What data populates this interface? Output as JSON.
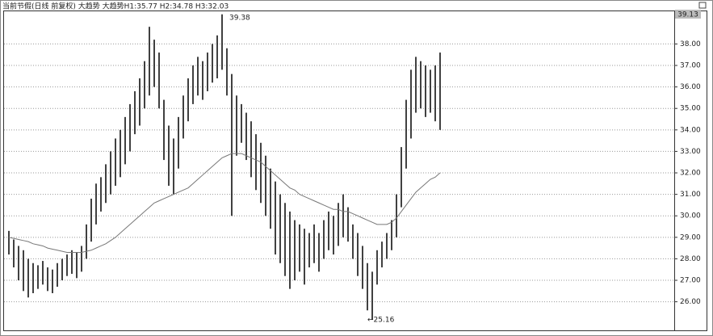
{
  "chart_data": {
    "type": "hilo",
    "title": "当前节假(日线 前复权) 大趋势 大趋势H1:35.77 H2:34.78 H3:32.03",
    "current_label": "39.13",
    "annotations": [
      "39.38",
      "←25.16"
    ],
    "highs": [
      29.3,
      28.9,
      28.6,
      28.4,
      28.0,
      27.8,
      27.7,
      27.9,
      27.6,
      27.5,
      27.8,
      28.0,
      28.2,
      28.4,
      28.3,
      28.6,
      29.6,
      30.8,
      31.5,
      31.8,
      32.4,
      33.0,
      33.6,
      34.0,
      34.6,
      35.2,
      35.8,
      36.4,
      37.2,
      38.8,
      38.2,
      37.6,
      35.4,
      34.2,
      33.6,
      34.6,
      35.6,
      36.4,
      37.0,
      37.4,
      37.2,
      37.6,
      38.0,
      38.4,
      39.38,
      37.8,
      36.6,
      35.6,
      35.2,
      34.8,
      34.4,
      33.8,
      33.4,
      32.8,
      32.2,
      31.6,
      31.0,
      30.6,
      30.2,
      29.8,
      29.6,
      29.4,
      29.2,
      29.6,
      29.2,
      29.8,
      30.2,
      30.0,
      30.6,
      31.0,
      30.4,
      29.6,
      29.2,
      28.6,
      27.8,
      27.4,
      28.4,
      28.8,
      29.2,
      29.8,
      31.0,
      33.2,
      35.4,
      36.8,
      37.4,
      37.2,
      37.0,
      36.8,
      37.0,
      37.6
    ],
    "lows": [
      28.2,
      27.6,
      27.0,
      26.5,
      26.2,
      26.4,
      26.6,
      26.8,
      26.5,
      26.4,
      26.7,
      27.0,
      27.2,
      27.3,
      27.1,
      27.4,
      28.0,
      28.8,
      29.6,
      30.2,
      30.6,
      31.0,
      31.4,
      31.8,
      32.4,
      33.0,
      33.8,
      34.2,
      35.0,
      35.6,
      36.0,
      35.0,
      32.6,
      31.4,
      31.0,
      32.2,
      33.6,
      34.4,
      35.2,
      35.6,
      35.4,
      35.8,
      36.2,
      36.4,
      36.8,
      35.6,
      30.0,
      32.8,
      33.4,
      32.6,
      31.8,
      31.2,
      30.6,
      30.0,
      29.4,
      28.2,
      27.8,
      27.2,
      26.6,
      27.0,
      27.4,
      26.8,
      27.6,
      27.8,
      27.4,
      28.0,
      28.4,
      28.2,
      28.6,
      29.0,
      28.8,
      28.0,
      27.2,
      26.6,
      25.6,
      25.16,
      26.8,
      27.6,
      28.0,
      28.4,
      29.0,
      30.4,
      32.2,
      33.6,
      34.8,
      35.0,
      34.6,
      34.8,
      34.4,
      34.0
    ],
    "ma": [
      29.0,
      28.95,
      28.9,
      28.85,
      28.8,
      28.7,
      28.65,
      28.6,
      28.5,
      28.45,
      28.4,
      28.35,
      28.3,
      28.3,
      28.3,
      28.3,
      28.35,
      28.4,
      28.5,
      28.6,
      28.7,
      28.85,
      29.0,
      29.2,
      29.4,
      29.6,
      29.8,
      30.0,
      30.2,
      30.4,
      30.6,
      30.7,
      30.8,
      30.9,
      31.0,
      31.1,
      31.2,
      31.3,
      31.5,
      31.7,
      31.9,
      32.1,
      32.3,
      32.5,
      32.7,
      32.8,
      32.9,
      32.9,
      32.9,
      32.8,
      32.7,
      32.6,
      32.5,
      32.3,
      32.1,
      31.9,
      31.7,
      31.5,
      31.3,
      31.2,
      31.0,
      30.9,
      30.8,
      30.7,
      30.6,
      30.5,
      30.4,
      30.3,
      30.3,
      30.2,
      30.2,
      30.1,
      30.0,
      29.9,
      29.8,
      29.7,
      29.6,
      29.6,
      29.6,
      29.7,
      29.9,
      30.2,
      30.5,
      30.8,
      31.1,
      31.3,
      31.5,
      31.7,
      31.8,
      32.0
    ],
    "color": "#111111",
    "ma_color": "#777777",
    "ylim": [
      24.67,
      39.52
    ],
    "yticks": [
      {
        "value": 26,
        "label": "26.00"
      },
      {
        "value": 27,
        "label": "27.00"
      },
      {
        "value": 28,
        "label": "28.00"
      },
      {
        "value": 29,
        "label": "29.00"
      },
      {
        "value": 30,
        "label": "30.00"
      },
      {
        "value": 31,
        "label": "31.00"
      },
      {
        "value": 32,
        "label": "32.00"
      },
      {
        "value": 33,
        "label": "33.00"
      },
      {
        "value": 34,
        "label": "34.00"
      },
      {
        "value": 35,
        "label": "35.00"
      },
      {
        "value": 36,
        "label": "36.00"
      },
      {
        "value": 37,
        "label": "37.00"
      },
      {
        "value": 38,
        "label": "38.00"
      }
    ],
    "grid": true
  }
}
